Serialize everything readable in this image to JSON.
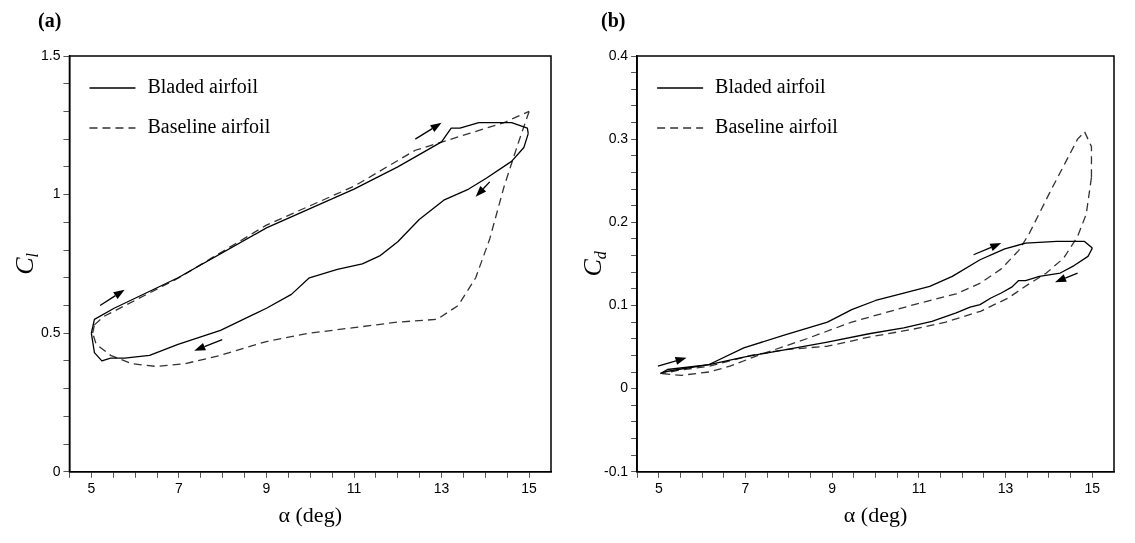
{
  "chart_data": [
    {
      "type": "line",
      "title": "(a)",
      "xlabel": "α (deg)",
      "ylabel": "C$_{l}$",
      "xlim": [
        4.5,
        15.5
      ],
      "xticks": [
        {
          "value": 4.5,
          "label": null
        },
        5,
        {
          "value": 5.5,
          "label": null
        },
        {
          "value": 6,
          "label": null
        },
        {
          "value": 6.5,
          "label": null
        },
        7,
        {
          "value": 7.5,
          "label": null
        },
        {
          "value": 8,
          "label": null
        },
        {
          "value": 8.5,
          "label": null
        },
        9,
        {
          "value": 9.5,
          "label": null
        },
        {
          "value": 10,
          "label": null
        },
        {
          "value": 10.5,
          "label": null
        },
        11,
        {
          "value": 11.5,
          "label": null
        },
        {
          "value": 12,
          "label": null
        },
        {
          "value": 12.5,
          "label": null
        },
        13,
        {
          "value": 13.5,
          "label": null
        },
        {
          "value": 14,
          "label": null
        },
        {
          "value": 14.5,
          "label": null
        },
        15
      ],
      "ylim": [
        0,
        1.5
      ],
      "yticks": [
        0,
        {
          "value": 0.1,
          "label": null
        },
        {
          "value": 0.2,
          "label": null
        },
        {
          "value": 0.3,
          "label": null
        },
        {
          "value": 0.4,
          "label": null
        },
        0.5,
        {
          "value": 0.6,
          "label": null
        },
        {
          "value": 0.7,
          "label": null
        },
        {
          "value": 0.8,
          "label": null
        },
        {
          "value": 0.9,
          "label": null
        },
        1,
        {
          "value": 1.1,
          "label": null
        },
        {
          "value": 1.2,
          "label": null
        },
        {
          "value": 1.3,
          "label": null
        },
        {
          "value": 1.4,
          "label": null
        },
        1.5
      ],
      "grid": false,
      "legend": "top left",
      "marker": "none",
      "series": [
        {
          "name": "Bladed airfoil",
          "color": "#000000",
          "line_style": "solid",
          "x": [
            5.0,
            5.07,
            5.52,
            6.98,
            9.0,
            11.0,
            12.0,
            13.0,
            13.22,
            13.42,
            13.85,
            14.1,
            14.6,
            14.96,
            14.98,
            14.88,
            14.6,
            14.03,
            13.62,
            13.05,
            12.49,
            12.0,
            11.6,
            11.19,
            10.62,
            9.98,
            9.57,
            9.0,
            7.95,
            6.98,
            6.33,
            5.76,
            5.44,
            5.24,
            5.07,
            5.0
          ],
          "values": [
            0.5,
            0.55,
            0.59,
            0.7,
            0.88,
            1.02,
            1.1,
            1.19,
            1.24,
            1.24,
            1.26,
            1.26,
            1.26,
            1.24,
            1.22,
            1.17,
            1.12,
            1.06,
            1.02,
            0.98,
            0.91,
            0.83,
            0.78,
            0.75,
            0.73,
            0.7,
            0.64,
            0.59,
            0.51,
            0.46,
            0.42,
            0.41,
            0.41,
            0.4,
            0.43,
            0.5
          ]
        },
        {
          "name": "Baseline airfoil",
          "color": "#333333",
          "line_style": "dashed",
          "x": [
            5.07,
            5.28,
            7.0,
            9.0,
            11.0,
            12.4,
            13.62,
            14.43,
            15.0,
            14.76,
            14.43,
            14.1,
            13.78,
            13.38,
            12.9,
            12.0,
            11.0,
            9.97,
            9.0,
            7.95,
            7.14,
            6.49,
            5.92,
            5.44,
            5.11,
            5.03,
            5.07
          ],
          "values": [
            0.53,
            0.56,
            0.7,
            0.89,
            1.03,
            1.16,
            1.22,
            1.26,
            1.3,
            1.19,
            1.03,
            0.84,
            0.7,
            0.6,
            0.55,
            0.54,
            0.52,
            0.5,
            0.47,
            0.42,
            0.39,
            0.38,
            0.39,
            0.42,
            0.46,
            0.5,
            0.53
          ]
        }
      ]
    },
    {
      "type": "line",
      "title": "(b)",
      "xlabel": "α (deg)",
      "ylabel": "C$_{d}$",
      "xlim": [
        4.5,
        15.5
      ],
      "xticks": [
        {
          "value": 4.5,
          "label": null
        },
        5,
        {
          "value": 5.5,
          "label": null
        },
        {
          "value": 6,
          "label": null
        },
        {
          "value": 6.5,
          "label": null
        },
        7,
        {
          "value": 7.5,
          "label": null
        },
        {
          "value": 8,
          "label": null
        },
        {
          "value": 8.5,
          "label": null
        },
        9,
        {
          "value": 9.5,
          "label": null
        },
        {
          "value": 10,
          "label": null
        },
        {
          "value": 10.5,
          "label": null
        },
        11,
        {
          "value": 11.5,
          "label": null
        },
        {
          "value": 12,
          "label": null
        },
        {
          "value": 12.5,
          "label": null
        },
        13,
        {
          "value": 13.5,
          "label": null
        },
        {
          "value": 14,
          "label": null
        },
        {
          "value": 14.5,
          "label": null
        },
        15
      ],
      "ylim": [
        -0.1,
        0.4
      ],
      "yticks": [
        -0.1,
        {
          "value": -0.08,
          "label": null
        },
        {
          "value": -0.06,
          "label": null
        },
        {
          "value": -0.04,
          "label": null
        },
        {
          "value": -0.02,
          "label": null
        },
        0,
        {
          "value": 0.02,
          "label": null
        },
        {
          "value": 0.04,
          "label": null
        },
        {
          "value": 0.06,
          "label": null
        },
        {
          "value": 0.08,
          "label": null
        },
        0.1,
        {
          "value": 0.12,
          "label": null
        },
        {
          "value": 0.14,
          "label": null
        },
        {
          "value": 0.16,
          "label": null
        },
        {
          "value": 0.18,
          "label": null
        },
        0.2,
        {
          "value": 0.22,
          "label": null
        },
        {
          "value": 0.24,
          "label": null
        },
        {
          "value": 0.26,
          "label": null
        },
        {
          "value": 0.28,
          "label": null
        },
        0.3,
        {
          "value": 0.32,
          "label": null
        },
        {
          "value": 0.34,
          "label": null
        },
        {
          "value": 0.36,
          "label": null
        },
        {
          "value": 0.38,
          "label": null
        },
        0.4
      ],
      "grid": false,
      "legend": "top left",
      "marker": "none",
      "series": [
        {
          "name": "Bladed airfoil",
          "color": "#000000",
          "line_style": "solid",
          "x": [
            5.04,
            5.2,
            6.16,
            6.96,
            7.93,
            8.89,
            9.45,
            10.0,
            10.65,
            11.25,
            11.77,
            12.41,
            12.98,
            13.46,
            14.18,
            14.82,
            15.0,
            14.9,
            14.58,
            14.26,
            13.78,
            13.46,
            13.3,
            13.14,
            12.9,
            12.66,
            12.41,
            12.18,
            11.86,
            11.3,
            10.65,
            9.85,
            8.89,
            7.93,
            6.96,
            6.16,
            5.44,
            5.12,
            5.04
          ],
          "values": [
            0.018,
            0.023,
            0.029,
            0.049,
            0.065,
            0.08,
            0.095,
            0.106,
            0.115,
            0.123,
            0.135,
            0.155,
            0.168,
            0.175,
            0.177,
            0.177,
            0.169,
            0.159,
            0.148,
            0.139,
            0.135,
            0.13,
            0.13,
            0.122,
            0.115,
            0.109,
            0.101,
            0.098,
            0.091,
            0.081,
            0.073,
            0.066,
            0.056,
            0.047,
            0.038,
            0.029,
            0.023,
            0.02,
            0.018
          ]
        },
        {
          "name": "Baseline airfoil",
          "color": "#333333",
          "line_style": "dashed",
          "x": [
            5.08,
            5.52,
            6.16,
            6.64,
            7.29,
            8.41,
            9.45,
            10.82,
            11.86,
            12.42,
            12.9,
            13.3,
            13.54,
            14.02,
            14.42,
            14.66,
            14.82,
            14.98,
            14.98,
            14.86,
            14.66,
            14.34,
            13.94,
            13.54,
            13.06,
            12.42,
            11.62,
            10.82,
            9.85,
            8.89,
            7.93,
            7.13,
            6.16,
            5.44,
            5.08
          ],
          "values": [
            0.018,
            0.016,
            0.02,
            0.027,
            0.04,
            0.06,
            0.08,
            0.1,
            0.114,
            0.127,
            0.144,
            0.166,
            0.186,
            0.236,
            0.276,
            0.3,
            0.309,
            0.291,
            0.254,
            0.21,
            0.183,
            0.157,
            0.139,
            0.126,
            0.109,
            0.093,
            0.08,
            0.071,
            0.062,
            0.051,
            0.047,
            0.04,
            0.027,
            0.022,
            0.018
          ]
        }
      ]
    }
  ]
}
